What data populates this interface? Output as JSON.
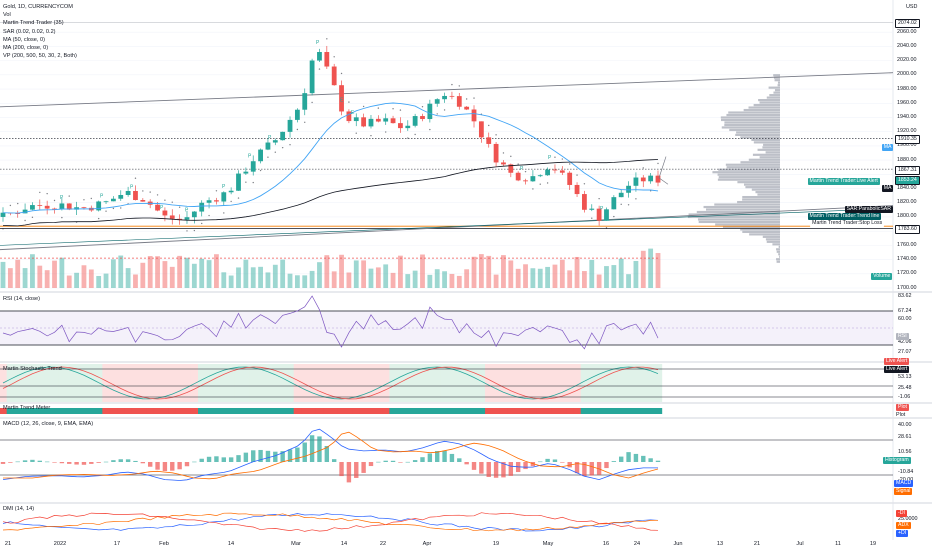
{
  "header": {
    "symbol": "Gold, 1D, CURRENCYCOM",
    "currency": "USD",
    "indicators": [
      "Vol",
      "Martin Trend Trader (35)",
      "SAR (0.02, 0.02, 0.2)",
      "MA (50, close, 0)",
      "MA (200, close, 0)",
      "VP (200, 500, 50, 30, 2, Both)"
    ]
  },
  "price_axis": {
    "ticks": [
      "2060.00",
      "2040.00",
      "2020.00",
      "2000.00",
      "1980.00",
      "1960.00",
      "1940.00",
      "1920.00",
      "1900.00",
      "1880.00",
      "1860.00",
      "1840.00",
      "1820.00",
      "1800.00",
      "1780.00",
      "1760.00",
      "1740.00",
      "1720.00",
      "1700.00"
    ],
    "highlights": [
      {
        "label": "2074.02",
        "value": 2074.02,
        "bg": "#ffffff",
        "fg": "#131722"
      },
      {
        "label": "1910.35",
        "value": 1910.35,
        "bg": "#ffffff",
        "fg": "#131722"
      },
      {
        "label": "1867.31",
        "value": 1867.31,
        "bg": "#ffffff",
        "fg": "#131722"
      },
      {
        "label": "1853.24",
        "value": 1853.24,
        "bg": "#26a69a",
        "fg": "#ffffff"
      },
      {
        "label": "1783.60",
        "value": 1783.6,
        "bg": "#ffffff",
        "fg": "#131722"
      }
    ],
    "tags": [
      {
        "label": "MA",
        "value": 1898,
        "bg": "#42a5f5",
        "fg": "#ffffff"
      },
      {
        "label": "Martin Trend Trader:Live Alert",
        "value": 1850,
        "bg": "#26a69a",
        "fg": "#ffffff"
      },
      {
        "label": "MA",
        "value": 1840,
        "bg": "#131722",
        "fg": "#ffffff"
      },
      {
        "label": "SAR:ParabolicSAR",
        "value": 1810,
        "bg": "#131722",
        "fg": "#ffffff"
      },
      {
        "label": "Martin Trend Trader:Trend line",
        "value": 1800,
        "bg": "#006064",
        "fg": "#ffffff"
      },
      {
        "label": "Martin Trend Trader:Stop Loss",
        "value": 1791,
        "bg": "#ffffff",
        "fg": "#131722"
      },
      {
        "label": "Volume",
        "value": 1716,
        "bg": "#26a69a",
        "fg": "#ffffff"
      }
    ]
  },
  "panes": {
    "rsi": {
      "title": "RSI (14, close)",
      "labels": [
        "83.62",
        "67.24",
        "60.00",
        "42.06",
        "27.07"
      ],
      "tag": "RSI"
    },
    "stoch": {
      "title": "Martin Stochastic Trend",
      "labels": [
        "53.13",
        "25.48",
        "-1.06"
      ],
      "tags": [
        "Live Alert",
        "Live Alert"
      ]
    },
    "mvm": {
      "title": "Martin Trend Meter",
      "tags": [
        "Plot",
        "Plot"
      ]
    },
    "macd": {
      "title": "MACD (12, 26, close, 9, EMA, EMA)",
      "labels": [
        "40.00",
        "28.61",
        "10.56",
        "-20.00",
        "-10.84"
      ],
      "tags": [
        "Histogram",
        "MACD",
        "Signal"
      ]
    },
    "dmi": {
      "title": "DMI (14, 14)",
      "labels": [
        "25.0000",
        "+DI",
        "ADX",
        "-DI"
      ]
    }
  },
  "x_axis": [
    "21",
    "2022",
    "17",
    "Feb",
    "14",
    "Mar",
    "14",
    "22",
    "Apr",
    "19",
    "May",
    "16",
    "24",
    "Jun",
    "13",
    "21",
    "Jul",
    "11",
    "19"
  ],
  "colors": {
    "up": "#26a69a",
    "down": "#ef5350",
    "ma50": "#42a5f5",
    "ma200": "#131722",
    "vp": "#b2b5be",
    "stochPink": "#fde0e0",
    "stochGreen": "#e0f2e9"
  },
  "chart_data": {
    "type": "candlestick",
    "title": "Gold, 1D, CURRENCYCOM",
    "ylim": [
      1700,
      2080
    ],
    "annotations": [
      "P",
      "E"
    ],
    "key_levels": [
      2074.02,
      1910.35,
      1867.31,
      1853.24,
      1783.6
    ]
  }
}
